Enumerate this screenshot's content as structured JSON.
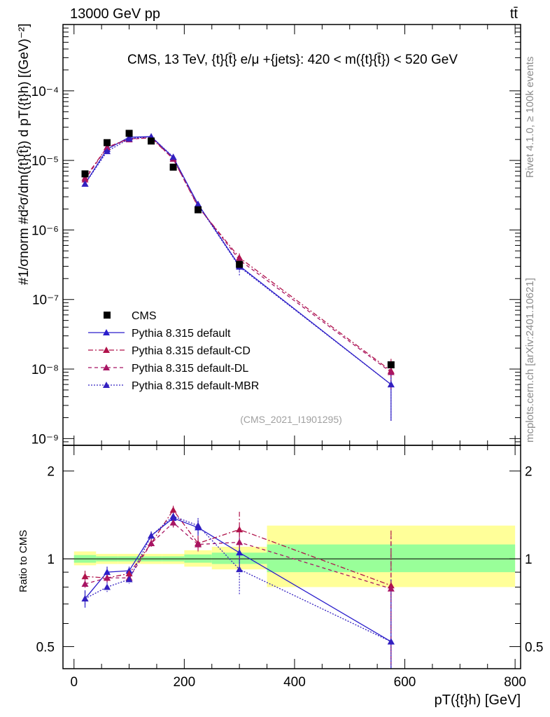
{
  "header": {
    "left": "13000 GeV pp",
    "right": "tt̄"
  },
  "side_labels": {
    "rivet": "Rivet 4.1.0, ≥ 100k events",
    "mcplots": "mcplots.cern.ch [arXiv:2401.10621]"
  },
  "chart_data": [
    {
      "type": "line",
      "title": "CMS, 13 TeV, {t}{t̄} e/μ +{jets}: 420 < m({t}{t̄}) < 520 GeV",
      "ylabel": "#1/σnorm #d²σ/dm({t}{t̄}) d pT({t}h) [(GeV)⁻²]",
      "yscale": "log",
      "xlim": [
        -20,
        810
      ],
      "ylim": [
        8e-10,
        0.0009
      ],
      "y_ticks": [
        {
          "value": 1e-09,
          "label": "10⁻⁹"
        },
        {
          "value": 1e-08,
          "label": "10⁻⁸"
        },
        {
          "value": 1e-07,
          "label": "10⁻⁷"
        },
        {
          "value": 1e-06,
          "label": "10⁻⁶"
        },
        {
          "value": 1e-05,
          "label": "10⁻⁵"
        },
        {
          "value": 0.0001,
          "label": "10⁻⁴"
        }
      ],
      "annotation": "(CMS_2021_I1901295)",
      "legend": [
        {
          "name": "CMS",
          "color": "#000000",
          "style": "marker"
        },
        {
          "name": "Pythia 8.315 default",
          "color": "#2a1ecc",
          "style": "solid"
        },
        {
          "name": "Pythia 8.315 default-CD",
          "color": "#b0124a",
          "style": "dashdot"
        },
        {
          "name": "Pythia 8.315 default-DL",
          "color": "#a81564",
          "style": "dashed"
        },
        {
          "name": "Pythia 8.315 default-MBR",
          "color": "#3320c0",
          "style": "dotted"
        }
      ],
      "data": {
        "name": "CMS",
        "x": [
          20,
          60,
          100,
          140,
          180,
          225,
          300,
          575
        ],
        "y": [
          6.4e-06,
          1.8e-05,
          2.45e-05,
          1.9e-05,
          8e-06,
          1.95e-06,
          3.2e-07,
          1.15e-08
        ],
        "bins": [
          [
            0,
            40
          ],
          [
            40,
            80
          ],
          [
            80,
            120
          ],
          [
            120,
            160
          ],
          [
            160,
            200
          ],
          [
            200,
            250
          ],
          [
            250,
            350
          ],
          [
            350,
            800
          ]
        ]
      },
      "series": [
        {
          "name": "Pythia 8.315 default",
          "x": [
            20,
            60,
            100,
            140,
            180,
            225,
            300,
            575
          ],
          "y": [
            4.6e-06,
            1.45e-05,
            2.15e-05,
            2.2e-05,
            1.1e-05,
            2.35e-06,
            3.05e-07,
            6e-09
          ],
          "err_lo": [
            4.3e-06,
            1.35e-05,
            2.05e-05,
            2.1e-05,
            1.05e-05,
            2.2e-06,
            2.6e-07,
            1.8e-09
          ],
          "err_hi": [
            5e-06,
            1.55e-05,
            2.25e-05,
            2.3e-05,
            1.15e-05,
            2.5e-06,
            3.6e-07,
            1.2e-08
          ]
        },
        {
          "name": "Pythia 8.315 default-CD",
          "x": [
            20,
            60,
            100,
            140,
            180,
            225,
            300,
            575
          ],
          "y": [
            5.6e-06,
            1.55e-05,
            2.05e-05,
            2.1e-05,
            1.05e-05,
            2.15e-06,
            4e-07,
            9.4e-09
          ],
          "err_lo": [
            5.2e-06,
            1.45e-05,
            1.95e-05,
            2e-05,
            1e-05,
            2e-06,
            3.4e-07,
            5e-09
          ],
          "err_hi": [
            6e-06,
            1.65e-05,
            2.15e-05,
            2.2e-05,
            1.1e-05,
            2.3e-06,
            4.6e-07,
            1.4e-08
          ]
        },
        {
          "name": "Pythia 8.315 default-DL",
          "x": [
            20,
            60,
            100,
            140,
            180,
            225,
            300,
            575
          ],
          "y": [
            5.3e-06,
            1.55e-05,
            2e-05,
            2.15e-05,
            1.05e-05,
            2.2e-06,
            3.7e-07,
            9e-09
          ],
          "err_lo": [
            5e-06,
            1.45e-05,
            1.9e-05,
            2.05e-05,
            1e-05,
            2.05e-06,
            3.2e-07,
            4.8e-09
          ],
          "err_hi": [
            5.6e-06,
            1.65e-05,
            2.1e-05,
            2.25e-05,
            1.1e-05,
            2.35e-06,
            4.2e-07,
            1.3e-08
          ]
        },
        {
          "name": "Pythia 8.315 default-MBR",
          "x": [
            20,
            60,
            100,
            140,
            180,
            225,
            300,
            575
          ],
          "y": [
            4.6e-06,
            1.35e-05,
            2.05e-05,
            2.2e-05,
            1.12e-05,
            2.3e-06,
            2.95e-07,
            6e-09
          ],
          "err_lo": [
            4.3e-06,
            1.25e-05,
            1.95e-05,
            2.1e-05,
            1.07e-05,
            2.15e-06,
            2.2e-07,
            1.8e-09
          ],
          "err_hi": [
            4.9e-06,
            1.45e-05,
            2.15e-05,
            2.3e-05,
            1.17e-05,
            2.45e-06,
            3.7e-07,
            1.2e-08
          ]
        }
      ]
    },
    {
      "type": "line",
      "ylabel": "Ratio to CMS",
      "xlabel": "pT({t}h) [GeV]",
      "yscale": "log",
      "xlim": [
        -20,
        810
      ],
      "ylim": [
        0.42,
        2.45
      ],
      "x_ticks": [
        0,
        200,
        400,
        600,
        800
      ],
      "y_ticks": [
        {
          "value": 0.5,
          "label": "0.5"
        },
        {
          "value": 1,
          "label": "1"
        },
        {
          "value": 2,
          "label": "2"
        }
      ],
      "bands": [
        {
          "bin": [
            0,
            40
          ],
          "inner": [
            0.97,
            1.03
          ],
          "outer": [
            0.95,
            1.06
          ]
        },
        {
          "bin": [
            40,
            80
          ],
          "inner": [
            0.98,
            1.02
          ],
          "outer": [
            0.96,
            1.04
          ]
        },
        {
          "bin": [
            80,
            120
          ],
          "inner": [
            0.98,
            1.02
          ],
          "outer": [
            0.96,
            1.04
          ]
        },
        {
          "bin": [
            120,
            160
          ],
          "inner": [
            0.98,
            1.02
          ],
          "outer": [
            0.96,
            1.04
          ]
        },
        {
          "bin": [
            160,
            200
          ],
          "inner": [
            0.98,
            1.02
          ],
          "outer": [
            0.96,
            1.04
          ]
        },
        {
          "bin": [
            200,
            250
          ],
          "inner": [
            0.97,
            1.035
          ],
          "outer": [
            0.94,
            1.07
          ]
        },
        {
          "bin": [
            250,
            350
          ],
          "inner": [
            0.96,
            1.05
          ],
          "outer": [
            0.92,
            1.1
          ]
        },
        {
          "bin": [
            350,
            800
          ],
          "inner": [
            0.9,
            1.12
          ],
          "outer": [
            0.8,
            1.3
          ]
        }
      ],
      "series": [
        {
          "name": "Pythia 8.315 default",
          "x": [
            20,
            60,
            100,
            140,
            180,
            225,
            300,
            575
          ],
          "y": [
            0.73,
            0.9,
            0.91,
            1.2,
            1.38,
            1.28,
            1.05,
            0.52
          ],
          "err_lo": [
            0.68,
            0.86,
            0.88,
            1.16,
            1.33,
            1.2,
            0.92,
            0.33
          ],
          "err_hi": [
            0.78,
            0.94,
            0.94,
            1.24,
            1.43,
            1.36,
            1.18,
            0.85
          ]
        },
        {
          "name": "Pythia 8.315 default-CD",
          "x": [
            20,
            60,
            100,
            140,
            180,
            225,
            300,
            575
          ],
          "y": [
            0.87,
            0.86,
            0.89,
            1.13,
            1.47,
            1.13,
            1.26,
            0.81
          ],
          "err_lo": [
            0.83,
            0.83,
            0.86,
            1.1,
            1.42,
            1.07,
            1.1,
            0.45
          ],
          "err_hi": [
            0.91,
            0.89,
            0.92,
            1.17,
            1.52,
            1.2,
            1.45,
            1.25
          ]
        },
        {
          "name": "Pythia 8.315 default-DL",
          "x": [
            20,
            60,
            100,
            140,
            180,
            225,
            300,
            575
          ],
          "y": [
            0.82,
            0.86,
            0.86,
            1.13,
            1.33,
            1.12,
            1.14,
            0.79
          ],
          "err_lo": [
            0.78,
            0.83,
            0.83,
            1.1,
            1.28,
            1.06,
            1.0,
            0.43
          ],
          "err_hi": [
            0.86,
            0.89,
            0.89,
            1.16,
            1.38,
            1.18,
            1.3,
            1.2
          ]
        },
        {
          "name": "Pythia 8.315 default-MBR",
          "x": [
            20,
            60,
            100,
            140,
            180,
            225,
            300,
            575
          ],
          "y": [
            0.73,
            0.8,
            0.85,
            1.2,
            1.4,
            1.3,
            0.92,
            0.52
          ],
          "err_lo": [
            0.69,
            0.77,
            0.82,
            1.16,
            1.35,
            1.22,
            0.75,
            0.33
          ],
          "err_hi": [
            0.77,
            0.83,
            0.88,
            1.24,
            1.45,
            1.38,
            1.09,
            0.85
          ]
        }
      ]
    }
  ]
}
